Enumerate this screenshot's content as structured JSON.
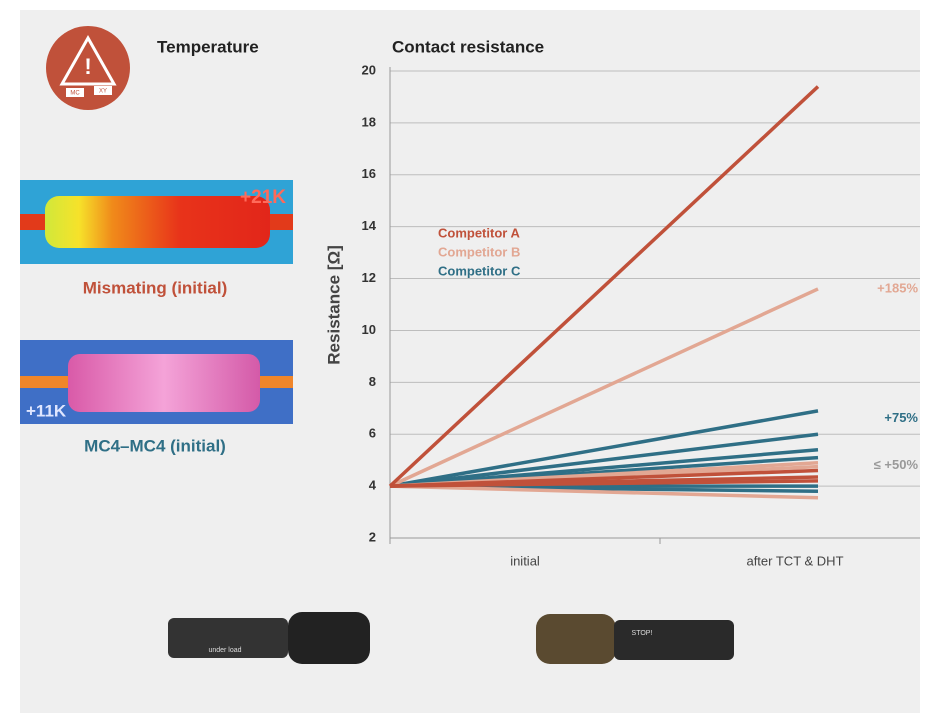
{
  "chart_data": {
    "type": "line",
    "title": "Contact resistance",
    "ylabel": "Resistance [Ω]",
    "categories": [
      "initial",
      "after TCT & DHT"
    ],
    "ylim": [
      2,
      20
    ],
    "yticks": [
      2,
      4,
      6,
      8,
      10,
      12,
      14,
      16,
      18,
      20
    ],
    "grid": true,
    "series": [
      {
        "name": "Competitor A",
        "color": "#c0513a",
        "values": [
          [
            4,
            19.4
          ],
          [
            4,
            4.6
          ],
          [
            4,
            4.35
          ],
          [
            4,
            4.2
          ]
        ]
      },
      {
        "name": "Competitor B",
        "color": "#e2a793",
        "values": [
          [
            4,
            11.6
          ],
          [
            4,
            4.9
          ],
          [
            4,
            4.75
          ],
          [
            4,
            3.55
          ]
        ]
      },
      {
        "name": "Competitor C",
        "color": "#2f6f86",
        "values": [
          [
            4,
            6.9
          ],
          [
            4,
            6.0
          ],
          [
            4,
            5.4
          ],
          [
            4,
            5.1
          ],
          [
            4,
            4.0
          ],
          [
            4,
            3.8
          ]
        ]
      }
    ],
    "annotations": [
      {
        "text": "+185%",
        "y": 11.6,
        "color": "#e2a793"
      },
      {
        "text": "+75%",
        "y": 6.6,
        "color": "#2f6f86"
      },
      {
        "text": "≤ +50%",
        "y": 4.8,
        "color": "#999999"
      }
    ]
  },
  "left": {
    "title": "Temperature",
    "icon_labels": [
      "MC",
      "XY"
    ],
    "images": [
      {
        "delta": "+21K",
        "caption": "Mismating (initial)"
      },
      {
        "delta": "+11K",
        "caption": "MC4–MC4 (initial)"
      }
    ],
    "photo_labels": [
      "under load",
      "STOP!"
    ]
  }
}
